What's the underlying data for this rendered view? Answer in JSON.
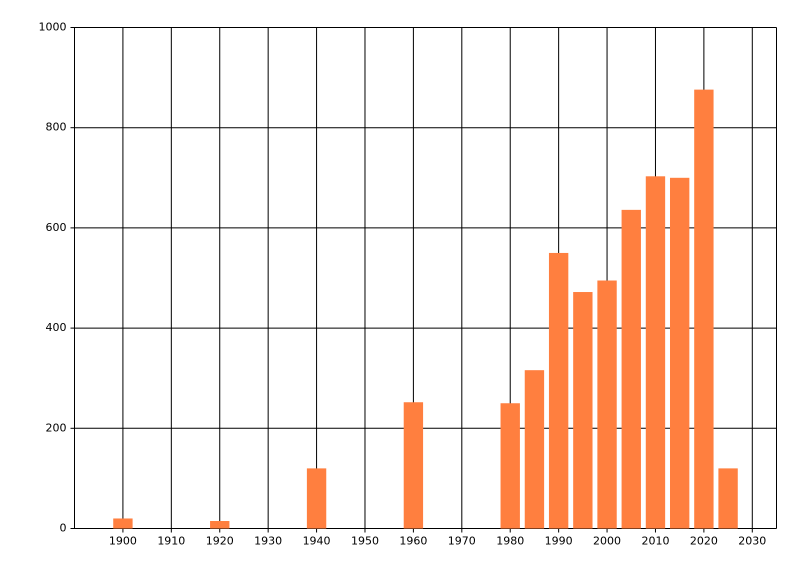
{
  "chart_data": {
    "type": "bar",
    "x": [
      1900,
      1920,
      1940,
      1960,
      1980,
      1985,
      1990,
      1995,
      2000,
      2005,
      2010,
      2015,
      2020,
      2025
    ],
    "values": [
      20,
      15,
      120,
      252,
      250,
      316,
      550,
      472,
      495,
      636,
      703,
      700,
      876,
      120
    ],
    "color": "#ff7f3f",
    "xlim": [
      1890,
      2035
    ],
    "xticks": [
      1900,
      1910,
      1920,
      1930,
      1940,
      1950,
      1960,
      1970,
      1980,
      1990,
      2000,
      2010,
      2020,
      2030
    ],
    "ylim": [
      0,
      1000
    ],
    "yticks": [
      0,
      200,
      400,
      600,
      800,
      1000
    ],
    "grid": true
  }
}
